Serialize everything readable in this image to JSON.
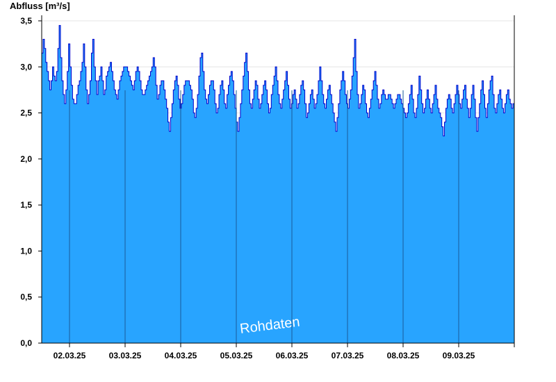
{
  "chart_data": {
    "type": "area",
    "title": "",
    "ylabel": "Abfluss [m³/s]",
    "xlabel": "",
    "watermark": "Rohdaten",
    "ylim": [
      0,
      3.5
    ],
    "yticks": [
      "0,0",
      "0,5",
      "1,0",
      "1,5",
      "2,0",
      "2,5",
      "3,0",
      "3,5"
    ],
    "yticks_values": [
      0,
      0.5,
      1.0,
      1.5,
      2.0,
      2.5,
      3.0,
      3.5
    ],
    "xlim_days": [
      "01.03.25 12:00",
      "09.03.25 24:00"
    ],
    "day_labels": [
      "02.03.25",
      "03.03.25",
      "04.03.25",
      "05.03.25",
      "06.03.25",
      "07.03.25",
      "08.03.25",
      "09.03.25"
    ],
    "grid": true,
    "colors": {
      "fill": "#28a4ff",
      "line": "#0000cc",
      "grid": "#e6e6e6",
      "separator": "#1a5a99"
    },
    "series": [
      {
        "values": [
          3.15,
          3.3,
          3.2,
          3.05,
          2.95,
          2.85,
          2.75,
          2.85,
          3.0,
          2.9,
          2.85,
          2.95,
          3.2,
          3.45,
          3.1,
          2.85,
          2.7,
          2.6,
          2.75,
          2.95,
          3.25,
          3.0,
          2.8,
          2.65,
          2.6,
          2.6,
          2.7,
          2.8,
          2.85,
          2.95,
          3.05,
          3.25,
          3.0,
          2.75,
          2.6,
          2.7,
          2.85,
          3.15,
          3.3,
          3.0,
          2.85,
          2.7,
          2.85,
          2.9,
          3.0,
          2.85,
          2.7,
          2.75,
          2.9,
          2.95,
          3.0,
          3.05,
          2.95,
          2.85,
          2.75,
          2.7,
          2.65,
          2.75,
          2.85,
          2.9,
          2.95,
          3.0,
          3.0,
          3.0,
          2.95,
          2.9,
          2.85,
          2.8,
          2.75,
          2.85,
          2.95,
          3.0,
          2.95,
          2.85,
          2.75,
          2.7,
          2.7,
          2.75,
          2.8,
          2.85,
          2.9,
          2.95,
          3.0,
          3.1,
          3.0,
          2.8,
          2.65,
          2.7,
          2.8,
          2.85,
          2.85,
          2.75,
          2.65,
          2.55,
          2.4,
          2.3,
          2.45,
          2.6,
          2.75,
          2.85,
          2.9,
          2.8,
          2.65,
          2.55,
          2.6,
          2.7,
          2.8,
          2.85,
          2.85,
          2.85,
          2.8,
          2.75,
          2.65,
          2.5,
          2.45,
          2.55,
          2.7,
          2.9,
          3.1,
          3.15,
          2.95,
          2.75,
          2.65,
          2.6,
          2.7,
          2.8,
          2.85,
          2.85,
          2.75,
          2.6,
          2.5,
          2.55,
          2.7,
          2.8,
          2.85,
          2.75,
          2.6,
          2.55,
          2.7,
          2.8,
          2.9,
          2.95,
          2.85,
          2.7,
          2.55,
          2.4,
          2.3,
          2.45,
          2.6,
          2.75,
          2.9,
          3.05,
          3.15,
          2.95,
          2.75,
          2.6,
          2.55,
          2.65,
          2.75,
          2.85,
          2.8,
          2.65,
          2.55,
          2.6,
          2.7,
          2.8,
          2.85,
          2.75,
          2.6,
          2.5,
          2.55,
          2.7,
          2.8,
          2.9,
          3.0,
          2.85,
          2.7,
          2.6,
          2.55,
          2.65,
          2.75,
          2.85,
          2.95,
          2.8,
          2.65,
          2.55,
          2.6,
          2.7,
          2.75,
          2.65,
          2.55,
          2.6,
          2.7,
          2.8,
          2.85,
          2.75,
          2.6,
          2.45,
          2.5,
          2.6,
          2.7,
          2.75,
          2.65,
          2.55,
          2.6,
          2.7,
          2.85,
          3.0,
          2.85,
          2.7,
          2.6,
          2.55,
          2.65,
          2.75,
          2.8,
          2.7,
          2.6,
          2.5,
          2.4,
          2.3,
          2.45,
          2.6,
          2.75,
          2.85,
          2.95,
          2.85,
          2.7,
          2.6,
          2.55,
          2.65,
          2.75,
          2.9,
          3.1,
          3.3,
          2.95,
          2.7,
          2.55,
          2.6,
          2.7,
          2.8,
          2.75,
          2.6,
          2.5,
          2.45,
          2.55,
          2.65,
          2.75,
          2.85,
          2.95,
          2.8,
          2.65,
          2.55,
          2.6,
          2.7,
          2.75,
          2.7,
          2.65,
          2.65,
          2.7,
          2.7,
          2.65,
          2.6,
          2.55,
          2.6,
          2.65,
          2.7,
          2.7,
          2.65,
          2.6,
          2.55,
          2.5,
          2.45,
          2.5,
          2.6,
          2.7,
          2.8,
          2.65,
          2.5,
          2.45,
          2.55,
          2.7,
          2.9,
          2.75,
          2.6,
          2.5,
          2.55,
          2.65,
          2.75,
          2.65,
          2.55,
          2.5,
          2.6,
          2.7,
          2.8,
          2.65,
          2.55,
          2.5,
          2.45,
          2.35,
          2.25,
          2.4,
          2.55,
          2.65,
          2.7,
          2.65,
          2.55,
          2.5,
          2.6,
          2.7,
          2.8,
          2.7,
          2.6,
          2.55,
          2.65,
          2.75,
          2.8,
          2.65,
          2.55,
          2.45,
          2.55,
          2.7,
          2.8,
          2.65,
          2.45,
          2.3,
          2.45,
          2.6,
          2.75,
          2.85,
          2.7,
          2.55,
          2.45,
          2.6,
          2.75,
          2.85,
          2.9,
          2.7,
          2.55,
          2.5,
          2.6,
          2.7,
          2.75,
          2.65,
          2.55,
          2.5,
          2.6,
          2.7,
          2.75,
          2.65,
          2.6,
          2.55,
          2.6,
          2.7
        ]
      }
    ]
  }
}
